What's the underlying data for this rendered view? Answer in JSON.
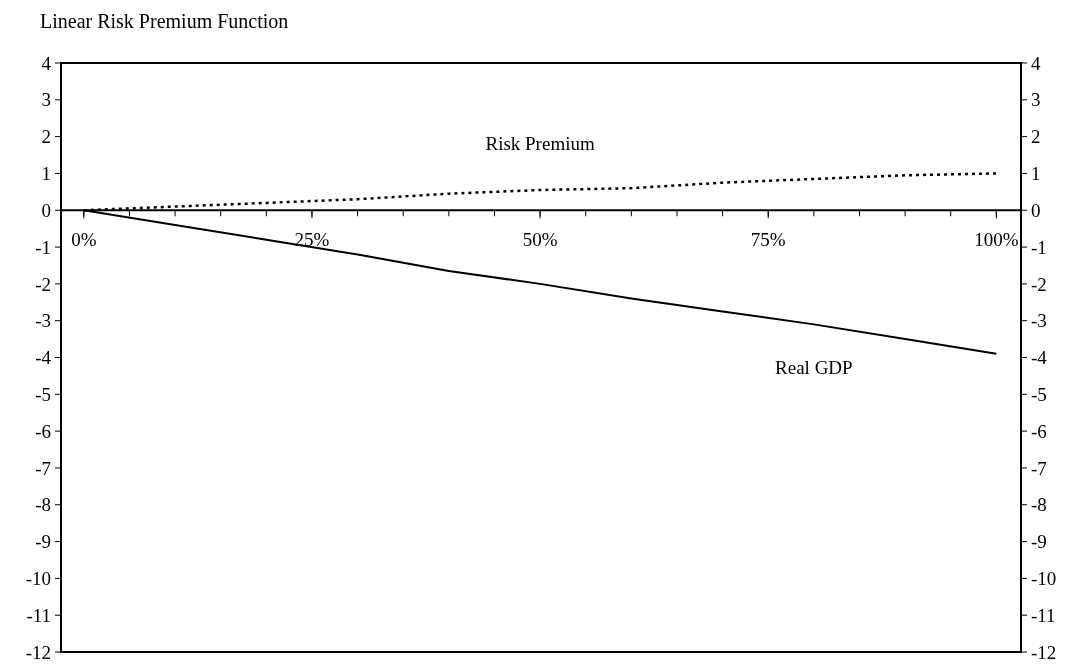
{
  "chart_data": {
    "type": "line",
    "title": "Linear Risk Premium Function",
    "x": [
      0,
      10,
      20,
      30,
      40,
      50,
      60,
      70,
      80,
      90,
      100
    ],
    "series": [
      {
        "name": "Risk Premium",
        "color": "#000000",
        "line_style": "dotted",
        "values": [
          0,
          0.1,
          0.2,
          0.3,
          0.45,
          0.55,
          0.6,
          0.75,
          0.85,
          0.95,
          1.0
        ]
      },
      {
        "name": "Real GDP",
        "color": "#000000",
        "line_style": "solid",
        "values": [
          0,
          -0.4,
          -0.8,
          -1.2,
          -1.65,
          -2.0,
          -2.4,
          -2.75,
          -3.1,
          -3.5,
          -3.9
        ]
      }
    ],
    "xlim": [
      -2.5,
      102.7
    ],
    "xticks": [
      {
        "value": 0,
        "label": "0%"
      },
      {
        "value": 25,
        "label": "25%"
      },
      {
        "value": 50,
        "label": "50%"
      },
      {
        "value": 75,
        "label": "75%"
      },
      {
        "value": 100,
        "label": "100%"
      }
    ],
    "ylim": [
      -12,
      4
    ],
    "yticks": [
      -12,
      -11,
      -10,
      -9,
      -8,
      -7,
      -6,
      -5,
      -4,
      -3,
      -2,
      -1,
      0,
      1,
      2,
      3,
      4
    ],
    "y2lim": [
      -12,
      4
    ],
    "y2ticks": [
      -12,
      -11,
      -10,
      -9,
      -8,
      -7,
      -6,
      -5,
      -4,
      -3,
      -2,
      -1,
      0,
      1,
      2,
      3,
      4
    ],
    "grid": false,
    "legend": false,
    "marker": "none"
  }
}
